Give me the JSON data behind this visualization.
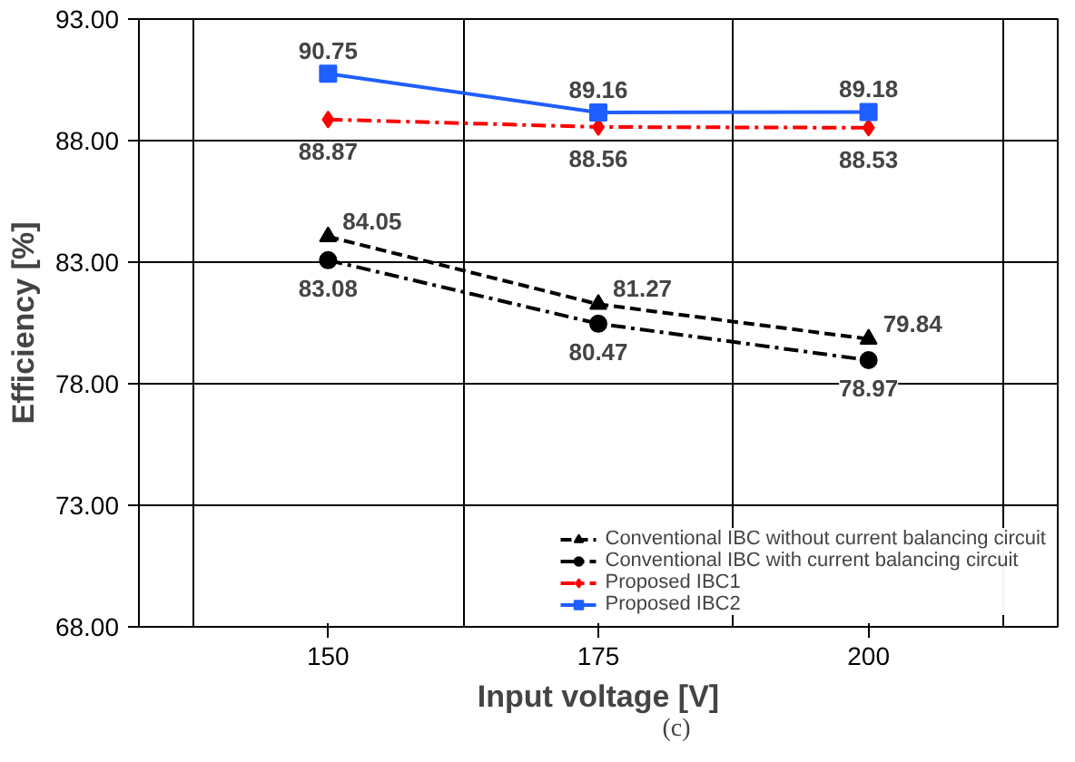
{
  "chart_data": {
    "type": "line",
    "xlabel": "Input voltage [V]",
    "ylabel": "Efficiency [%]",
    "categories": [
      "150",
      "175",
      "200"
    ],
    "ylim": [
      68,
      93
    ],
    "yticks": [
      {
        "value": 68,
        "label": "68.00"
      },
      {
        "value": 73,
        "label": "73.00"
      },
      {
        "value": 78,
        "label": "78.00"
      },
      {
        "value": 83,
        "label": "83.00"
      },
      {
        "value": 88,
        "label": "88.00"
      },
      {
        "value": 93,
        "label": "93.00"
      }
    ],
    "grid": true,
    "legend": "bottom right",
    "data_labels": true,
    "series": [
      {
        "name": "Conventional IBC without current balancing circuit",
        "color": "#000000",
        "values": [
          84.05,
          81.27,
          79.84
        ],
        "marker": "triangle",
        "line_style": "dashed"
      },
      {
        "name": "Conventional IBC with current balancing circuit",
        "color": "#000000",
        "values": [
          83.08,
          80.47,
          78.97
        ],
        "marker": "circle",
        "line_style": "dashdot"
      },
      {
        "name": "Proposed IBC1",
        "color": "#ff0000",
        "values": [
          88.87,
          88.56,
          88.53
        ],
        "marker": "diamond",
        "line_style": "dashdot"
      },
      {
        "name": "Proposed IBC2",
        "color": "#1f5fff",
        "values": [
          90.75,
          89.16,
          89.18
        ],
        "marker": "square",
        "line_style": "solid"
      }
    ],
    "annotations": [
      "(c)"
    ]
  }
}
